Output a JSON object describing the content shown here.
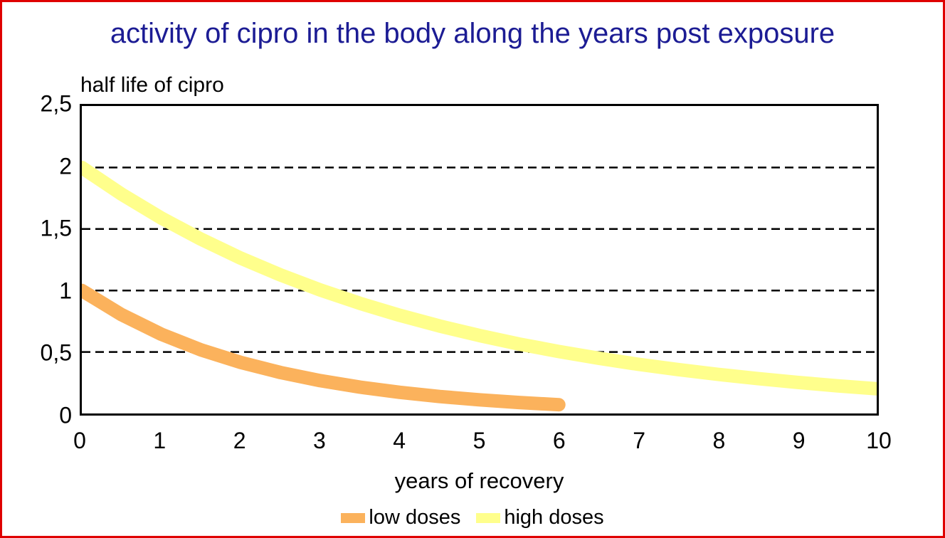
{
  "frame": {
    "background_color": "#ffffff",
    "border_color": "#df0000"
  },
  "title": {
    "text": "activity of cipro in the body along the years post exposure",
    "color": "#1c1c94"
  },
  "chart_data": {
    "type": "line",
    "title": "activity of cipro in the body along the years post exposure",
    "xlabel": "years of recovery",
    "ylabel": "half life of cipro",
    "xlim": [
      0,
      10
    ],
    "ylim": [
      0,
      2.5
    ],
    "grid": "horizontal-dashed",
    "gridline_values": [
      0.5,
      1,
      1.5,
      2
    ],
    "gridline_color": "#000000",
    "legend_position": "bottom-center",
    "x_ticks": [
      {
        "value": 0,
        "label": "0"
      },
      {
        "value": 1,
        "label": "1"
      },
      {
        "value": 2,
        "label": "2"
      },
      {
        "value": 3,
        "label": "3"
      },
      {
        "value": 4,
        "label": "4"
      },
      {
        "value": 5,
        "label": "5"
      },
      {
        "value": 6,
        "label": "6"
      },
      {
        "value": 7,
        "label": "7"
      },
      {
        "value": 8,
        "label": "8"
      },
      {
        "value": 9,
        "label": "9"
      },
      {
        "value": 10,
        "label": "10"
      }
    ],
    "y_ticks": [
      {
        "value": 2.5,
        "label": "2,5"
      },
      {
        "value": 2,
        "label": "2"
      },
      {
        "value": 1.5,
        "label": "1,5"
      },
      {
        "value": 1,
        "label": "1"
      },
      {
        "value": 0.5,
        "label": "0,5"
      },
      {
        "value": 0,
        "label": "0"
      }
    ],
    "series": [
      {
        "name": "low doses",
        "color": "#fbb25c",
        "line_width": 19,
        "x_range": [
          0,
          6
        ],
        "points": [
          [
            0,
            1.0
          ],
          [
            0.5,
            0.803
          ],
          [
            1,
            0.644
          ],
          [
            1.5,
            0.517
          ],
          [
            2,
            0.415
          ],
          [
            2.5,
            0.333
          ],
          [
            3,
            0.267
          ],
          [
            3.5,
            0.214
          ],
          [
            4,
            0.172
          ],
          [
            4.5,
            0.138
          ],
          [
            5,
            0.111
          ],
          [
            5.5,
            0.089
          ],
          [
            6,
            0.071
          ]
        ]
      },
      {
        "name": "high doses",
        "color": "#ffff8c",
        "line_width": 19,
        "x_range": [
          0,
          10
        ],
        "points": [
          [
            0,
            2.0
          ],
          [
            0.5,
            1.783
          ],
          [
            1,
            1.589
          ],
          [
            1.5,
            1.417
          ],
          [
            2,
            1.263
          ],
          [
            2.5,
            1.126
          ],
          [
            3,
            1.004
          ],
          [
            3.5,
            0.895
          ],
          [
            4,
            0.798
          ],
          [
            4.5,
            0.711
          ],
          [
            5,
            0.634
          ],
          [
            5.5,
            0.565
          ],
          [
            6,
            0.504
          ],
          [
            6.5,
            0.449
          ],
          [
            7,
            0.4
          ],
          [
            7.5,
            0.357
          ],
          [
            8,
            0.318
          ],
          [
            8.5,
            0.284
          ],
          [
            9,
            0.253
          ],
          [
            9.5,
            0.225
          ],
          [
            10,
            0.201
          ]
        ]
      }
    ]
  }
}
